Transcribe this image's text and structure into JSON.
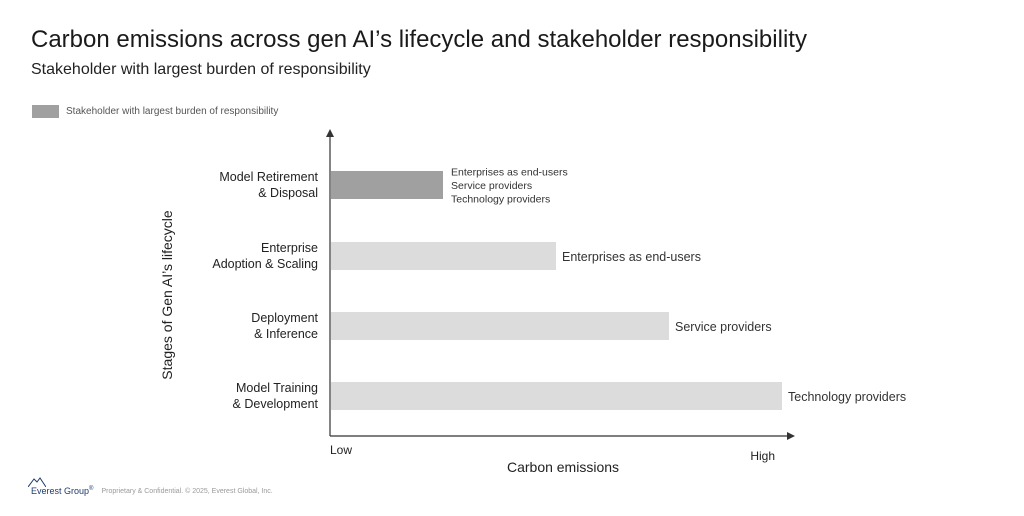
{
  "header": {
    "title": "Carbon emissions across gen AI’s lifecycle and stakeholder responsibility",
    "subtitle": "Stakeholder with largest burden of responsibility"
  },
  "legend": {
    "label": "Stakeholder with largest burden of responsibility",
    "color": "#a0a0a0"
  },
  "footer": {
    "logo_text": "Everest Group",
    "logo_mark": "®",
    "copyright": "Proprietary & Confidential. © 2025, Everest Global, Inc."
  },
  "colors": {
    "highlight_bar": "#a0a0a0",
    "regular_bar": "#dcdcdc",
    "axis": "#333333"
  },
  "chart_data": {
    "type": "bar",
    "orientation": "horizontal",
    "ylabel": "Stages of Gen AI’s lifecycle",
    "xlabel": "Carbon emissions",
    "x_tick_labels": {
      "low": "Low",
      "high": "High"
    },
    "xlim": [
      0,
      100
    ],
    "categories": [
      [
        "Model Retirement",
        "& Disposal"
      ],
      [
        "Enterprise",
        "Adoption & Scaling"
      ],
      [
        "Deployment",
        "& Inference"
      ],
      [
        "Model Training",
        "& Development"
      ]
    ],
    "values": [
      25,
      50,
      75,
      100
    ],
    "highlighted": [
      true,
      false,
      false,
      false
    ],
    "annotations": [
      [
        "Enterprises as end-users",
        "Service providers",
        "Technology providers"
      ],
      [
        "Enterprises as end-users"
      ],
      [
        "Service providers"
      ],
      [
        "Technology providers"
      ]
    ],
    "grid": false,
    "legend_position": "top-left"
  }
}
